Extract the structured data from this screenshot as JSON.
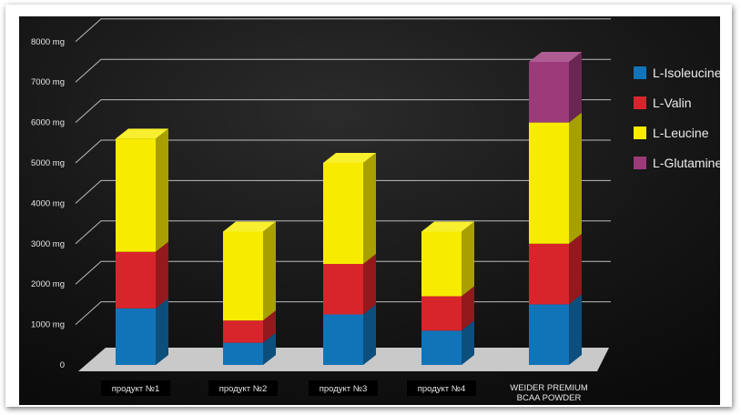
{
  "chart_data": {
    "type": "bar",
    "stacked": true,
    "categories": [
      "продукт №1",
      "продукт №2",
      "продукт №3",
      "продукт №4",
      "WEIDER PREMIUM\nBCAA POWDER"
    ],
    "series": [
      {
        "name": "L-Isoleucine",
        "color": "#1274b8",
        "values": [
          1400,
          550,
          1250,
          850,
          1500
        ]
      },
      {
        "name": "L-Valin",
        "color": "#d8252b",
        "values": [
          1400,
          550,
          1250,
          850,
          1500
        ]
      },
      {
        "name": "L-Leucine",
        "color": "#f7ec00",
        "values": [
          2800,
          2200,
          2500,
          1600,
          3000
        ]
      },
      {
        "name": "L-Glutamine",
        "color": "#9c3a7a",
        "values": [
          0,
          0,
          0,
          0,
          1500
        ]
      }
    ],
    "ylim": [
      0,
      8000
    ],
    "yticks": [
      "0",
      "1000 mg",
      "2000 mg",
      "3000 mg",
      "4000 mg",
      "5000 mg",
      "6000 mg",
      "7000 mg",
      "8000 mg"
    ],
    "legend_position": "right",
    "grid": true,
    "background": "#111111"
  }
}
